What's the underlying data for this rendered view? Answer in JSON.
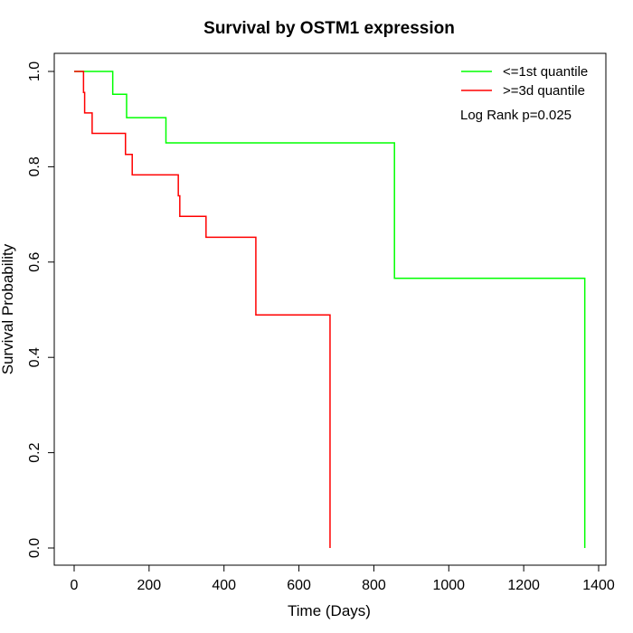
{
  "chart_data": {
    "type": "line",
    "title": "Survival by OSTM1 expression",
    "xlabel": "Time (Days)",
    "ylabel": "Survival Probability",
    "xlim": [
      0,
      1400
    ],
    "ylim": [
      0,
      1
    ],
    "x_ticks": [
      0,
      200,
      400,
      600,
      800,
      1000,
      1200,
      1400
    ],
    "y_ticks": [
      0.0,
      0.2,
      0.4,
      0.6,
      0.8,
      1.0
    ],
    "x_tick_labels": [
      "0",
      "200",
      "400",
      "600",
      "800",
      "1000",
      "1200",
      "1400"
    ],
    "y_tick_labels": [
      "0.0",
      "0.2",
      "0.4",
      "0.6",
      "0.8",
      "1.0"
    ],
    "grid": false,
    "legend_position": "top-right",
    "annotation": "Log Rank p=0.025",
    "series": [
      {
        "name": "<=1st quantile",
        "color": "#00ff00",
        "steps": [
          [
            0,
            1.0
          ],
          [
            103,
            0.952
          ],
          [
            140,
            0.903
          ],
          [
            245,
            0.85
          ],
          [
            855,
            0.566
          ],
          [
            1363,
            0.0
          ]
        ]
      },
      {
        "name": ">=3d quantile",
        "color": "#ff0000",
        "steps": [
          [
            0,
            1.0
          ],
          [
            25,
            0.956
          ],
          [
            28,
            0.913
          ],
          [
            48,
            0.87
          ],
          [
            137,
            0.826
          ],
          [
            155,
            0.783
          ],
          [
            278,
            0.739
          ],
          [
            282,
            0.696
          ],
          [
            352,
            0.652
          ],
          [
            485,
            0.489
          ],
          [
            683,
            0.0
          ]
        ]
      }
    ]
  }
}
